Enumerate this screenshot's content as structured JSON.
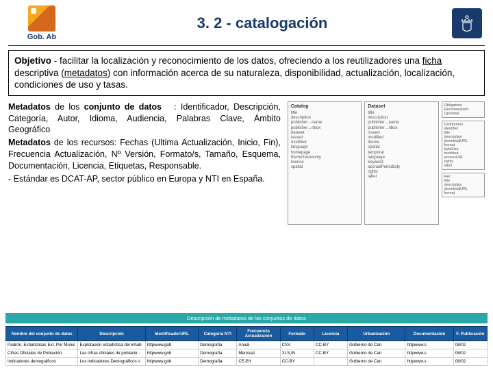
{
  "header": {
    "logo_text": "Gob. Ab",
    "title": "3. 2 - catalogación",
    "shield_glyph": "⚜"
  },
  "objective": {
    "lead": "Objetivo",
    "text_parts": [
      " - facilitar la localización y reconocimiento de los datos, ofreciendo a los reutilizadores una ",
      "ficha",
      " descriptiva (",
      "metadatos",
      ") con información acerca de su naturaleza, disponibilidad, actualización, localización, condiciones de uso y tasas."
    ]
  },
  "metadata": {
    "p1_lead": "Metadatos",
    "p1_mid": " de los ",
    "p1_b2": "conjunto de datos",
    "p1_rest": ": Identificador, Descripción, Categoría, Autor, Idioma, Audiencia, Palabras Clave, Ámbito Geográfico",
    "p2_lead": "Metadatos",
    "p2_rest": " de los recursos: Fechas (Ultima Actualización, Inicio, Fin), Frecuencia Actualización, Nº Versión, Formato/s, Tamaño, Esquema, Documentación, Licencia, Etiquetas, Responsable.",
    "p3": "- Estándar es DCAT-AP, sector público en Europa y NTI en España."
  },
  "diagram": {
    "top_label": "Obligatorio Recomendado Opcional",
    "cols": [
      {
        "h": "Catalog",
        "items": [
          "title",
          "description",
          "publisher→name",
          "publisher→nbox",
          "dataset",
          "issued",
          "modified",
          "language",
          "homepage",
          "themeTaxonomy",
          "license",
          "spatial"
        ]
      },
      {
        "h": "Dataset",
        "items": [
          "title",
          "description",
          "publisher→name",
          "publisher→nbox",
          "issued",
          "modified",
          "theme",
          "spatial",
          "temporal",
          "language",
          "keyword",
          "accrualPeriodicity",
          "rights",
          "label"
        ]
      },
      {
        "h": "",
        "items": [
          "identifier",
          "title",
          "description",
          "downloadURL",
          "format",
          "byteSize",
          "modified",
          "accessURL",
          "rights",
          "label"
        ]
      }
    ],
    "side": [
      {
        "h": "Distribution"
      },
      {
        "h": "Rec",
        "items": [
          "title",
          "description",
          "downloadURL",
          "format"
        ]
      }
    ]
  },
  "table": {
    "title": "Descripción de metadatos de los conjuntos de datos",
    "headers": [
      "Nombre del conjunto de datos",
      "Descripción",
      "IdentificadorURL",
      "Categoría NTI",
      "Frecuencia Actualización",
      "Formato",
      "Licencia",
      "Urbanización",
      "Documentación",
      "F. Publicación"
    ],
    "col_widths": [
      "15%",
      "14%",
      "11%",
      "8%",
      "9%",
      "7%",
      "7%",
      "12%",
      "10%",
      "7%"
    ],
    "rows": [
      [
        "Padrón. Estadísticas Ext. Por Munic",
        "Explotación estadística del inhab",
        "httpwww.gob",
        "Demografía",
        "Anual",
        "CSV",
        "CC-BY",
        "Gobierno de Can",
        "httpwww.s",
        "08/02"
      ],
      [
        "Cifras Oficiales de Población",
        "Las cifras oficiales de población de",
        "httpwww.gob",
        "Demografía",
        "Mensual",
        "XLS,IN",
        "CC-BY",
        "Gobierno de Can",
        "httpwww.s",
        "08/02"
      ],
      [
        "Indicadores demográficos",
        "Los indicadores Demográficos s",
        "httpwww.gob",
        "Demografía",
        "CE-BY",
        "CC-BY",
        "",
        "Gobierno de Can",
        "httpwww.s",
        "08/02"
      ]
    ]
  },
  "colors": {
    "brand_blue": "#1a3a6e",
    "teal": "#2aa8a8",
    "th_blue": "#1a5a9e"
  }
}
